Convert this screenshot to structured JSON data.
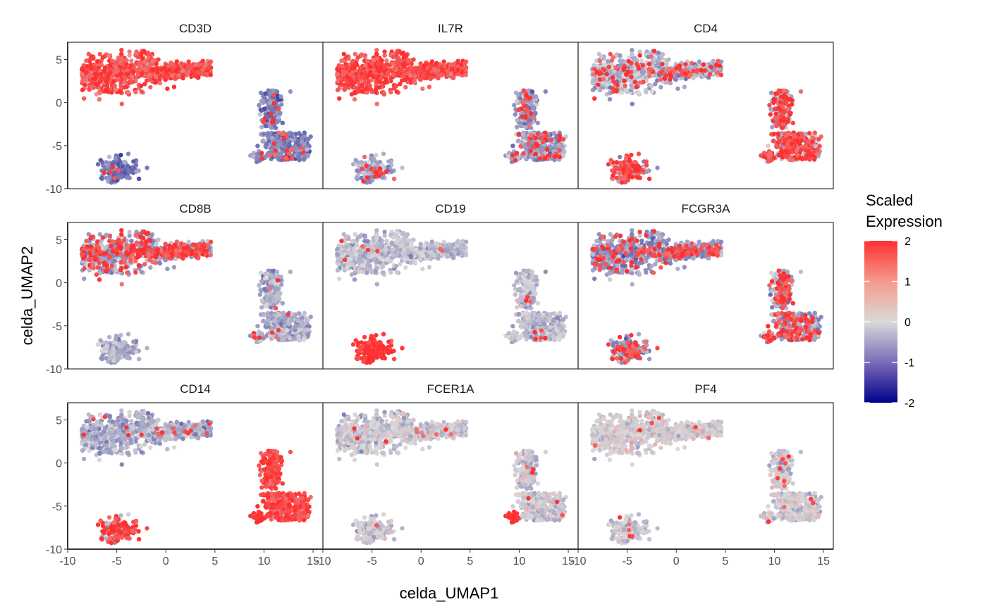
{
  "chart_data": {
    "type": "scatter",
    "xlabel": "celda_UMAP1",
    "ylabel": "celda_UMAP2",
    "xlim": [
      -10,
      16
    ],
    "ylim": [
      -10,
      7
    ],
    "x_ticks": [
      "-10",
      "-5",
      "0",
      "5",
      "10",
      "15"
    ],
    "y_ticks": [
      "-10",
      "-5",
      "0",
      "5"
    ],
    "facets": [
      "CD3D",
      "IL7R",
      "CD4",
      "CD8B",
      "CD19",
      "FCGR3A",
      "CD14",
      "FCER1A",
      "PF4"
    ],
    "legend": {
      "title_line1": "Scaled",
      "title_line2": "Expression",
      "position": "right",
      "range": [
        -2,
        2
      ],
      "ticks": [
        "2",
        "1",
        "0",
        "-1",
        "-2"
      ],
      "colors": {
        "low": "#00008b",
        "mid": "#d9d9d9",
        "high": "#ff3030"
      }
    },
    "clusters": {
      "tcell": {
        "center": [
          -2,
          3.2
        ],
        "extent": "elongated upper-left lobe"
      },
      "monocyte": {
        "center": [
          12,
          -4
        ],
        "extent": "lower-right lobe"
      },
      "bcell": {
        "center": [
          -5,
          -7.8
        ],
        "extent": "small lower-left blob"
      },
      "dc": {
        "center": [
          9.5,
          -6.3
        ],
        "extent": "small patch"
      }
    },
    "expression_levels": {
      "CD3D": {
        "tcell": 1.3,
        "monocyte": -0.8,
        "bcell": -0.9,
        "dc": -0.6,
        "hot_fraction_tcell": 0.7,
        "hot_fraction_other": 0.05
      },
      "IL7R": {
        "tcell": 1.4,
        "monocyte": -0.6,
        "bcell": -0.5,
        "dc": -0.4,
        "hot_fraction_tcell": 0.8,
        "hot_fraction_other": 0.1
      },
      "CD4": {
        "tcell": -0.3,
        "monocyte": -0.4,
        "bcell": -0.4,
        "dc": -0.3,
        "hot_fraction_tcell": 0.12,
        "hot_fraction_other": 0.55
      },
      "CD8B": {
        "tcell": -0.5,
        "monocyte": -0.4,
        "bcell": -0.4,
        "dc": -0.4,
        "hot_fraction_tcell": 0.35,
        "hot_fraction_other": 0.02
      },
      "CD19": {
        "tcell": -0.2,
        "monocyte": -0.2,
        "bcell": 2,
        "dc": -0.2,
        "hot_fraction_tcell": 0.01,
        "hot_fraction_other": 0.01
      },
      "FCGR3A": {
        "tcell": -0.6,
        "monocyte": -0.5,
        "bcell": -0.6,
        "dc": -0.3,
        "hot_fraction_tcell": 0.15,
        "hot_fraction_other": 0.3
      },
      "CD14": {
        "tcell": -0.4,
        "monocyte": 1.6,
        "bcell": -0.4,
        "dc": 0.6,
        "hot_fraction_tcell": 0.02,
        "hot_fraction_other": 0.7
      },
      "FCER1A": {
        "tcell": -0.1,
        "monocyte": -0.1,
        "bcell": -0.1,
        "dc": 2,
        "hot_fraction_tcell": 0.01,
        "hot_fraction_other": 0.01
      },
      "PF4": {
        "tcell": 0,
        "monocyte": -0.05,
        "bcell": -0.1,
        "dc": -0.1,
        "hot_fraction_tcell": 0.005,
        "hot_fraction_other": 0.02
      }
    }
  }
}
